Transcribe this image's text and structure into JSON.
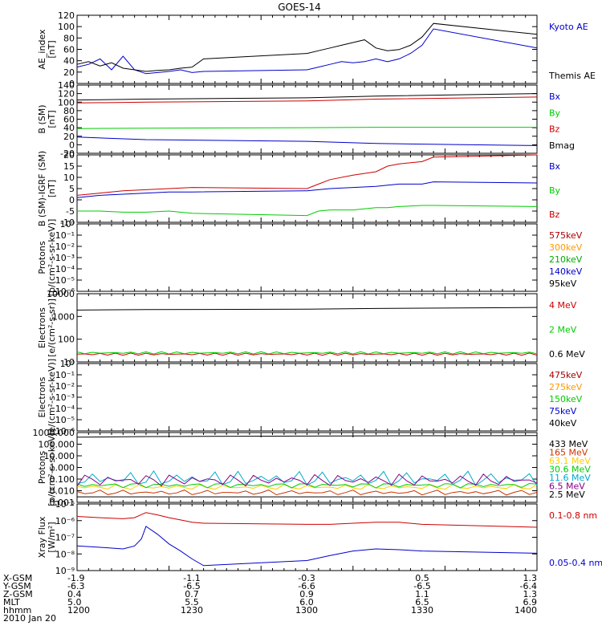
{
  "title": "GOES-14",
  "panels": [
    {
      "ylabel_lines": [
        "AE_index",
        "[nT]"
      ],
      "ticks": [
        "120",
        "100",
        "80",
        "60",
        "40",
        "20",
        "0"
      ],
      "legend": [
        {
          "label": "Kyoto AE",
          "color": "#0000cc"
        },
        {
          "label": "Themis AE",
          "color": "#000000"
        }
      ]
    },
    {
      "ylabel_lines": [
        "B (SM)",
        "[nT]"
      ],
      "ticks": [
        "140",
        "120",
        "100",
        "80",
        "60",
        "40",
        "20",
        "0",
        "-20"
      ],
      "legend": [
        {
          "label": "Bx",
          "color": "#0000cc"
        },
        {
          "label": "By",
          "color": "#00cc00"
        },
        {
          "label": "Bz",
          "color": "#cc0000"
        },
        {
          "label": "Bmag",
          "color": "#000000"
        }
      ]
    },
    {
      "ylabel_lines": [
        "B (SM)-IGRF (SM)",
        "[nT]"
      ],
      "ticks": [
        "20",
        "15",
        "10",
        "5",
        "0",
        "-5",
        "-10"
      ],
      "legend": [
        {
          "label": "Bx",
          "color": "#0000cc"
        },
        {
          "label": "By",
          "color": "#00cc00"
        },
        {
          "label": "Bz",
          "color": "#cc0000"
        }
      ]
    },
    {
      "ylabel_lines": [
        "Protons",
        "[p/(cm²-s-sr-keV)]"
      ],
      "ticks": [
        "10⁰",
        "10⁻¹",
        "10⁻²",
        "10⁻³",
        "10⁻⁴",
        "10⁻⁵",
        "10⁻⁶"
      ],
      "legend": [
        {
          "label": "575keV",
          "color": "#aa0000"
        },
        {
          "label": "300keV",
          "color": "#ff9900"
        },
        {
          "label": "210keV",
          "color": "#00aa00"
        },
        {
          "label": "140keV",
          "color": "#0000cc"
        },
        {
          "label": "95keV",
          "color": "#000000"
        }
      ]
    },
    {
      "ylabel_lines": [
        "Electrons",
        "[e/(cm²-s-sr)]"
      ],
      "ticks": [
        "10000",
        "1000",
        "100",
        "10"
      ],
      "legend": [
        {
          "label": "4 MeV",
          "color": "#cc0000"
        },
        {
          "label": "2 MeV",
          "color": "#00cc00"
        },
        {
          "label": "0.6 MeV",
          "color": "#000000"
        }
      ]
    },
    {
      "ylabel_lines": [
        "Electrons",
        "[e/(cm²-s-sr-keV)]"
      ],
      "ticks": [
        "10⁰",
        "10⁻¹",
        "10⁻²",
        "10⁻³",
        "10⁻⁴",
        "10⁻⁵",
        "10⁻⁶"
      ],
      "legend": [
        {
          "label": "475keV",
          "color": "#aa0000"
        },
        {
          "label": "275keV",
          "color": "#ff9900"
        },
        {
          "label": "150keV",
          "color": "#00cc00"
        },
        {
          "label": "75keV",
          "color": "#0000cc"
        },
        {
          "label": "40keV",
          "color": "#000000"
        }
      ]
    },
    {
      "ylabel_lines": [
        "Protons",
        "[p/(cm²-s-sr-keV)]"
      ],
      "ticks": [
        "1000.000",
        "100.000",
        "10.000",
        "1.000",
        "0.100",
        "0.010",
        "0.001"
      ],
      "legend": [
        {
          "label": "433 MeV",
          "color": "#000000"
        },
        {
          "label": "165 MeV",
          "color": "#cc3300"
        },
        {
          "label": "63.1 MeV",
          "color": "#ffcc00"
        },
        {
          "label": "30.6 MeV",
          "color": "#00cc00"
        },
        {
          "label": "11.6 MeV",
          "color": "#00aacc"
        },
        {
          "label": "6.5 MeV",
          "color": "#880088"
        },
        {
          "label": "2.5 MeV",
          "color": "#000000"
        }
      ]
    },
    {
      "ylabel_lines": [
        "Xray Flux",
        "[W/m²]"
      ],
      "ticks": [
        "10⁻⁵",
        "10⁻⁶",
        "10⁻⁷",
        "10⁻⁸",
        "10⁻⁹"
      ],
      "legend": [
        {
          "label": "0.1-0.8 nm",
          "color": "#cc0000"
        },
        {
          "label": "0.05-0.4 nm",
          "color": "#0000cc"
        }
      ]
    }
  ],
  "footer": {
    "row_labels": [
      "X-GSM",
      "Y-GSM",
      "Z-GSM",
      "MLT",
      "hhmm"
    ],
    "date": "2010 Jan 20",
    "columns": [
      [
        "-1.9",
        "-6.3",
        "0.4",
        "5.0",
        "1200"
      ],
      [
        "-1.1",
        "-6.5",
        "0.7",
        "5.5",
        "1230"
      ],
      [
        "-0.3",
        "-6.6",
        "0.9",
        "6.0",
        "1300"
      ],
      [
        "0.5",
        "-6.5",
        "1.1",
        "6.5",
        "1330"
      ],
      [
        "1.3",
        "-6.4",
        "1.3",
        "6.9",
        "1400"
      ]
    ]
  },
  "chart_data": [
    {
      "type": "line",
      "title": "GOES-14",
      "ylabel": "AE_index [nT]",
      "ylim": [
        0,
        125
      ],
      "x": [
        1200,
        1205,
        1210,
        1215,
        1220,
        1225,
        1230,
        1235,
        1240,
        1245,
        1250,
        1255,
        1300,
        1305,
        1310,
        1315,
        1320,
        1325,
        1330,
        1335,
        1340,
        1345,
        1350,
        1355,
        1400
      ],
      "series": [
        {
          "name": "Kyoto AE",
          "values": [
            30,
            35,
            45,
            25,
            50,
            25,
            18,
            20,
            22,
            25,
            20,
            22,
            25,
            30,
            35,
            40,
            38,
            40,
            45,
            40,
            45,
            55,
            70,
            100,
            65
          ]
        },
        {
          "name": "Themis AE",
          "values": [
            35,
            40,
            32,
            38,
            28,
            25,
            22,
            24,
            25,
            28,
            30,
            45,
            55,
            60,
            65,
            70,
            75,
            80,
            65,
            60,
            62,
            70,
            85,
            110,
            90
          ]
        }
      ]
    },
    {
      "type": "line",
      "ylabel": "B (SM) [nT]",
      "ylim": [
        -20,
        140
      ],
      "x": [
        1200,
        1230,
        1300,
        1330,
        1400
      ],
      "series": [
        {
          "name": "Bx",
          "values": [
            18,
            12,
            8,
            3,
            -2
          ]
        },
        {
          "name": "By",
          "values": [
            38,
            39,
            40,
            41,
            41
          ]
        },
        {
          "name": "Bz",
          "values": [
            98,
            100,
            103,
            107,
            112
          ]
        },
        {
          "name": "Bmag",
          "values": [
            105,
            107,
            110,
            114,
            120
          ]
        }
      ]
    },
    {
      "type": "line",
      "ylabel": "B (SM)-IGRF (SM) [nT]",
      "ylim": [
        -10,
        20
      ],
      "x": [
        1200,
        1210,
        1220,
        1230,
        1240,
        1250,
        1300,
        1305,
        1310,
        1320,
        1330,
        1335,
        1340,
        1350,
        1355,
        1400
      ],
      "series": [
        {
          "name": "Bx",
          "values": [
            1,
            2,
            2.5,
            3,
            3.5,
            3.5,
            4,
            4.5,
            5,
            5.5,
            6,
            6.5,
            7,
            7,
            8,
            7.5
          ]
        },
        {
          "name": "By",
          "values": [
            -5,
            -5,
            -5.5,
            -5.5,
            -5,
            -6,
            -7,
            -5,
            -4.5,
            -4.5,
            -3.5,
            -3.5,
            -3,
            -2.5,
            -2.5,
            -3
          ]
        },
        {
          "name": "Bz",
          "values": [
            2,
            3,
            4,
            4.5,
            5,
            5.5,
            5,
            7,
            9,
            11,
            12.5,
            15,
            16,
            17,
            19,
            20
          ]
        }
      ]
    },
    {
      "type": "line",
      "ylabel": "Protons [p/(cm²-s-sr-keV)]",
      "ylim": [
        "1e-6",
        "1e0"
      ],
      "x": [],
      "series": [
        {
          "name": "575keV",
          "values": []
        },
        {
          "name": "300keV",
          "values": []
        },
        {
          "name": "210keV",
          "values": []
        },
        {
          "name": "140keV",
          "values": []
        },
        {
          "name": "95keV",
          "values": []
        }
      ]
    },
    {
      "type": "line",
      "ylabel": "Electrons [e/(cm²-s-sr)]",
      "ylim": [
        10,
        10000
      ],
      "x": [
        1200,
        1230,
        1300,
        1330,
        1400
      ],
      "series": [
        {
          "name": "4 MeV",
          "values": [
            22,
            22,
            22,
            22,
            22
          ]
        },
        {
          "name": "2 MeV",
          "values": [
            25,
            25,
            25,
            25,
            25
          ]
        },
        {
          "name": "0.6 MeV",
          "values": [
            1900,
            2000,
            2100,
            2250,
            2500
          ]
        }
      ]
    },
    {
      "type": "line",
      "ylabel": "Electrons [e/(cm²-s-sr-keV)]",
      "ylim": [
        "1e-6",
        "1e0"
      ],
      "x": [],
      "series": [
        {
          "name": "475keV",
          "values": []
        },
        {
          "name": "275keV",
          "values": []
        },
        {
          "name": "150keV",
          "values": []
        },
        {
          "name": "75keV",
          "values": []
        },
        {
          "name": "40keV",
          "values": []
        }
      ]
    },
    {
      "type": "line",
      "ylabel": "Protons [p/(cm²-s-sr-keV)]",
      "ylim": [
        0.001,
        1000
      ],
      "x": [
        1200,
        1230,
        1300,
        1330,
        1400
      ],
      "series": [
        {
          "name": "433 MeV",
          "values": [
            400,
            450,
            500,
            520,
            550
          ]
        },
        {
          "name": "165 MeV",
          "values": [
            0.007,
            0.007,
            0.007,
            0.007,
            0.007
          ]
        },
        {
          "name": "63.1 MeV",
          "values": [
            0.02,
            0.02,
            0.02,
            0.02,
            0.02
          ]
        },
        {
          "name": "30.6 MeV",
          "values": [
            0.03,
            0.03,
            0.03,
            0.03,
            0.03
          ]
        },
        {
          "name": "11.6 MeV",
          "values": [
            0.1,
            0.1,
            0.1,
            0.1,
            0.1
          ]
        },
        {
          "name": "6.5 MeV",
          "values": [
            0.08,
            0.08,
            0.08,
            0.08,
            0.08
          ]
        },
        {
          "name": "2.5 MeV",
          "values": [
            0.003,
            0.003,
            0.003,
            0.003,
            0.003
          ]
        }
      ]
    },
    {
      "type": "line",
      "ylabel": "Xray Flux [W/m²]",
      "ylim": [
        "1e-9",
        "1e-5"
      ],
      "x": [
        1200,
        1210,
        1220,
        1225,
        1228,
        1230,
        1235,
        1240,
        1245,
        1250,
        1255,
        1300,
        1310,
        1320,
        1330,
        1340,
        1350,
        1400
      ],
      "series": [
        {
          "name": "0.1-0.8 nm",
          "values": [
            "1.8e-6",
            "1.5e-6",
            "1.3e-6",
            "1.5e-6",
            "2.3e-6",
            "3e-6",
            "2.2e-6",
            "1.5e-6",
            "1.1e-6",
            "8e-7",
            "7e-7",
            "6e-7",
            "6e-7",
            "7e-7",
            "8e-7",
            "8e-7",
            "6e-7",
            "4e-7"
          ]
        },
        {
          "name": "0.05-0.4 nm",
          "values": [
            "3e-8",
            "2.5e-8",
            "2e-8",
            "3e-8",
            "8e-8",
            "4.5e-7",
            "1.5e-7",
            "4e-8",
            "1.5e-8",
            "5e-9",
            "2e-9",
            "4e-9",
            "8e-9",
            "1.5e-8",
            "2e-8",
            "1.8e-8",
            "1.5e-8",
            "1.1e-8"
          ]
        }
      ]
    }
  ]
}
